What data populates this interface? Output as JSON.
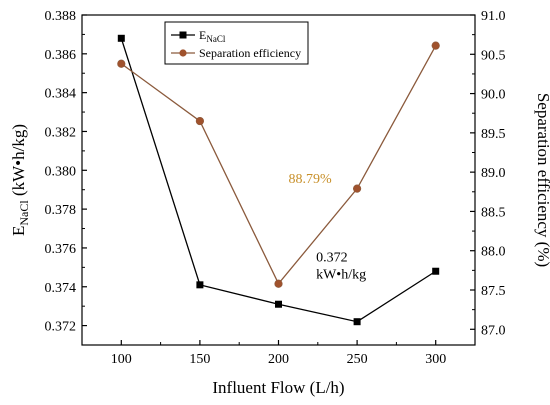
{
  "chart_data": {
    "type": "line",
    "x": [
      100,
      150,
      200,
      250,
      300
    ],
    "xlabel": "Influent Flow (L/h)",
    "xlim": [
      75,
      325
    ],
    "xticks": [
      100,
      150,
      200,
      250,
      300
    ],
    "y_left": {
      "label_main": "E",
      "label_sub": "NaCl",
      "label_unit": " (kW•h/kg)",
      "ylim": [
        0.371,
        0.388
      ],
      "ticks": [
        "0.372",
        "0.374",
        "0.376",
        "0.378",
        "0.380",
        "0.382",
        "0.384",
        "0.386",
        "0.388"
      ]
    },
    "y_right": {
      "label": "Separation efficiency (%)",
      "ylim": [
        86.8,
        91.0
      ],
      "ticks": [
        "87.0",
        "87.5",
        "88.0",
        "88.5",
        "89.0",
        "89.5",
        "90.0",
        "90.5",
        "91.0"
      ]
    },
    "series": [
      {
        "name_main": "E",
        "name_sub": "NaCl",
        "axis": "left",
        "marker": "square",
        "color": "#000000",
        "values": [
          0.3868,
          0.3741,
          0.3731,
          0.3722,
          0.3748
        ]
      },
      {
        "name": "Separation efficiency",
        "axis": "right",
        "marker": "circle",
        "color": "#8b5a3c",
        "marker_color": "#a0522d",
        "values": [
          90.38,
          89.65,
          87.58,
          88.79,
          90.61
        ]
      }
    ],
    "annotations": [
      {
        "text": "88.79%",
        "color": "#c8902a"
      },
      {
        "text": "0.372",
        "color": "#000000"
      },
      {
        "text": "kW•h/kg",
        "color": "#000000"
      }
    ],
    "legend": "top-left",
    "grid": false
  }
}
